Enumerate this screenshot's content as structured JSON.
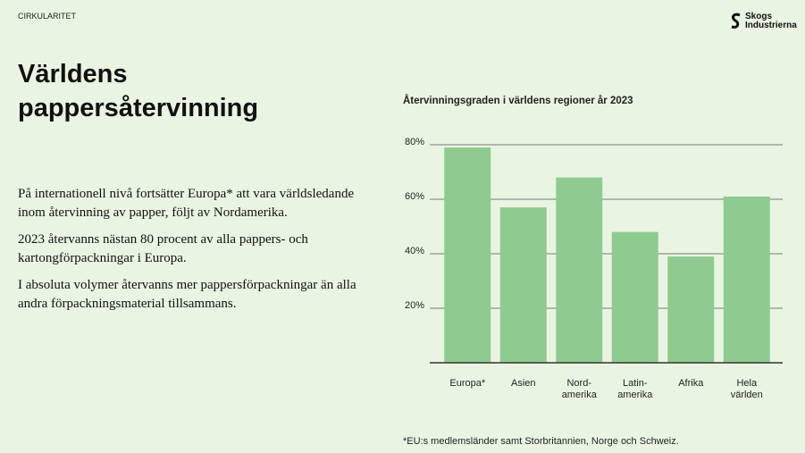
{
  "header": {
    "section": "CIRKULARITET",
    "title_lines": [
      "Världens",
      "pappersåtervinning"
    ],
    "logo": [
      "Skogs",
      "Industrierna"
    ]
  },
  "body": [
    "På internationell nivå fortsätter Europa* att vara världsledande inom återvinning av papper, följt av Nordamerika.",
    "2023 återvanns nästan 80 procent av alla pappers- och kartongförpackningar i Europa.",
    "I absoluta volymer återvanns mer pappersförpackningar än alla andra förpackningsmaterial tillsammans."
  ],
  "chart_data": {
    "type": "bar",
    "title": "Återvinningsgraden i världens regioner år 2023",
    "categories": [
      "Europa*",
      "Asien",
      "Nord-\namerika",
      "Latin-\namerika",
      "Afrika",
      "Hela\nvärlden"
    ],
    "values": [
      79,
      57,
      68,
      48,
      39,
      61
    ],
    "color": "#8fcb90",
    "ylim": [
      0,
      80
    ],
    "yticks": [
      {
        "value": 20,
        "label": "20%"
      },
      {
        "value": 40,
        "label": "40%"
      },
      {
        "value": 60,
        "label": "60%"
      },
      {
        "value": 80,
        "label": "80%"
      }
    ],
    "grid": true,
    "footnote": "*EU:s medlemsländer samt Storbritannien, Norge och Schweiz."
  }
}
